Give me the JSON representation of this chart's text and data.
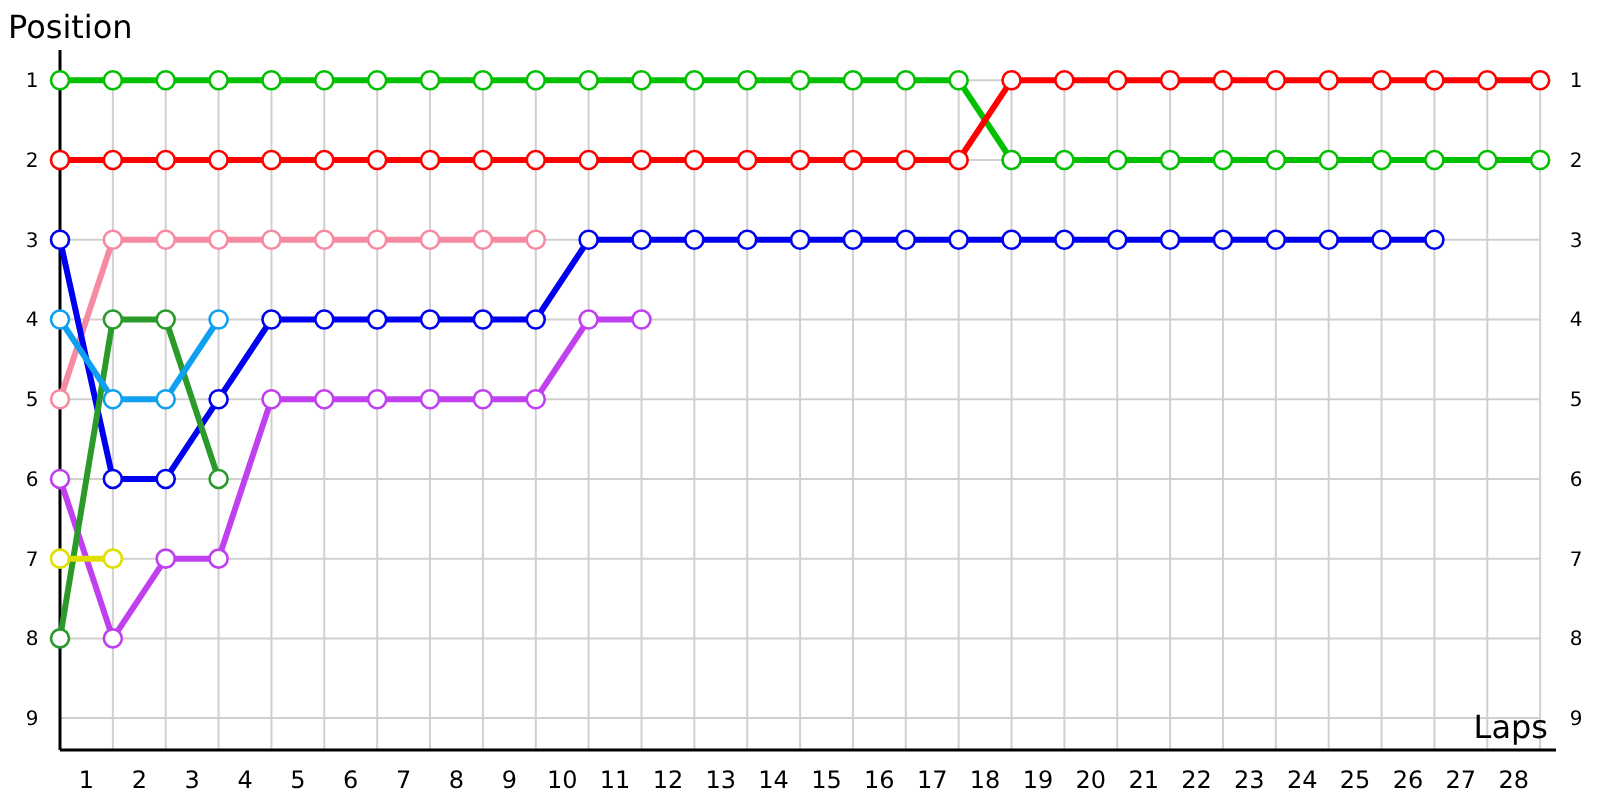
{
  "chart_data": {
    "type": "line",
    "xlabel": "Laps",
    "ylabel": "Position",
    "xlim": [
      0,
      28.3
    ],
    "ylim": [
      9.4,
      0.62
    ],
    "y2lim": [
      9.4,
      0.62
    ],
    "xticks": [
      {
        "value": 0.5,
        "label": "1"
      },
      {
        "value": 1.5,
        "label": "2"
      },
      {
        "value": 2.5,
        "label": "3"
      },
      {
        "value": 3.5,
        "label": "4"
      },
      {
        "value": 4.5,
        "label": "5"
      },
      {
        "value": 5.5,
        "label": "6"
      },
      {
        "value": 6.5,
        "label": "7"
      },
      {
        "value": 7.5,
        "label": "8"
      },
      {
        "value": 8.5,
        "label": "9"
      },
      {
        "value": 9.5,
        "label": "10"
      },
      {
        "value": 10.5,
        "label": "11"
      },
      {
        "value": 11.5,
        "label": "12"
      },
      {
        "value": 12.5,
        "label": "13"
      },
      {
        "value": 13.5,
        "label": "14"
      },
      {
        "value": 14.5,
        "label": "15"
      },
      {
        "value": 15.5,
        "label": "16"
      },
      {
        "value": 16.5,
        "label": "17"
      },
      {
        "value": 17.5,
        "label": "18"
      },
      {
        "value": 18.5,
        "label": "19"
      },
      {
        "value": 19.5,
        "label": "20"
      },
      {
        "value": 20.5,
        "label": "21"
      },
      {
        "value": 21.5,
        "label": "22"
      },
      {
        "value": 22.5,
        "label": "23"
      },
      {
        "value": 23.5,
        "label": "24"
      },
      {
        "value": 24.5,
        "label": "25"
      },
      {
        "value": 25.5,
        "label": "26"
      },
      {
        "value": 26.5,
        "label": "27"
      },
      {
        "value": 27.5,
        "label": "28"
      }
    ],
    "yticks": [
      1,
      2,
      3,
      4,
      5,
      6,
      7,
      8,
      9
    ],
    "y2ticks": [
      1,
      2,
      3,
      4,
      5,
      6,
      7,
      8,
      9
    ],
    "grid": true,
    "marker": "circle",
    "line_style": "solid",
    "x": [
      0,
      1,
      2,
      3,
      4,
      5,
      6,
      7,
      8,
      9,
      10,
      11,
      12,
      13,
      14,
      15,
      16,
      17,
      18,
      19,
      20,
      21,
      22,
      23,
      24,
      25,
      26,
      27,
      28
    ],
    "series": [
      {
        "color": "#00c000",
        "values": [
          1,
          1,
          1,
          1,
          1,
          1,
          1,
          1,
          1,
          1,
          1,
          1,
          1,
          1,
          1,
          1,
          1,
          1,
          2,
          2,
          2,
          2,
          2,
          2,
          2,
          2,
          2,
          2,
          2
        ]
      },
      {
        "color": "#ff0000",
        "values": [
          2,
          2,
          2,
          2,
          2,
          2,
          2,
          2,
          2,
          2,
          2,
          2,
          2,
          2,
          2,
          2,
          2,
          2,
          1,
          1,
          1,
          1,
          1,
          1,
          1,
          1,
          1,
          1,
          1
        ]
      },
      {
        "color": "#f58aa0",
        "values": [
          5,
          3,
          3,
          3,
          3,
          3,
          3,
          3,
          3,
          3,
          null,
          null,
          null,
          null,
          null,
          null,
          null,
          null,
          null,
          null,
          null,
          null,
          null,
          null,
          null,
          null,
          null,
          null,
          null
        ]
      },
      {
        "color": "#0000f0",
        "values": [
          3,
          6,
          6,
          5,
          4,
          4,
          4,
          4,
          4,
          4,
          3,
          3,
          3,
          3,
          3,
          3,
          3,
          3,
          3,
          3,
          3,
          3,
          3,
          3,
          3,
          3,
          3,
          null,
          null
        ]
      },
      {
        "color": "#c040f0",
        "values": [
          6,
          8,
          7,
          7,
          5,
          5,
          5,
          5,
          5,
          5,
          4,
          4,
          null,
          null,
          null,
          null,
          null,
          null,
          null,
          null,
          null,
          null,
          null,
          null,
          null,
          null,
          null,
          null,
          null
        ]
      },
      {
        "color": "#2a9a2a",
        "values": [
          8,
          4,
          4,
          6,
          null,
          null,
          null,
          null,
          null,
          null,
          null,
          null,
          null,
          null,
          null,
          null,
          null,
          null,
          null,
          null,
          null,
          null,
          null,
          null,
          null,
          null,
          null,
          null,
          null
        ]
      },
      {
        "color": "#10a0f0",
        "values": [
          4,
          5,
          5,
          4,
          null,
          null,
          null,
          null,
          null,
          null,
          null,
          null,
          null,
          null,
          null,
          null,
          null,
          null,
          null,
          null,
          null,
          null,
          null,
          null,
          null,
          null,
          null,
          null,
          null
        ]
      },
      {
        "color": "#e0e000",
        "values": [
          7,
          7,
          null,
          null,
          null,
          null,
          null,
          null,
          null,
          null,
          null,
          null,
          null,
          null,
          null,
          null,
          null,
          null,
          null,
          null,
          null,
          null,
          null,
          null,
          null,
          null,
          null,
          null,
          null
        ]
      }
    ]
  }
}
